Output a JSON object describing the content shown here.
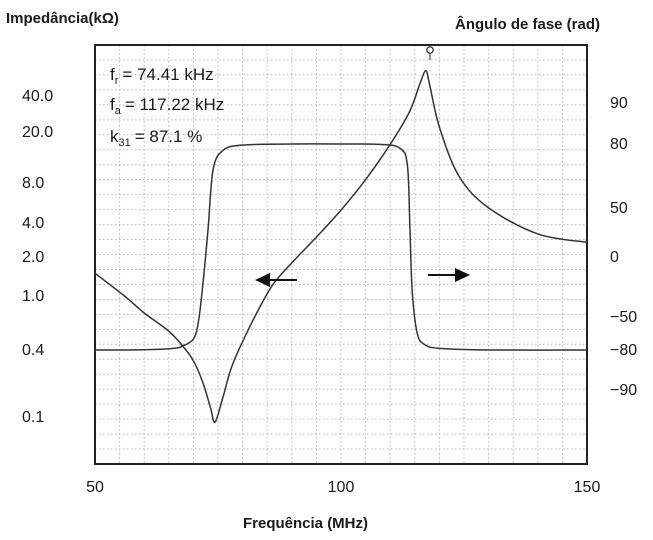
{
  "chart_data": {
    "type": "line",
    "title": "",
    "left_axis_title": "Impedância(kΩ)",
    "right_axis_title": "Ângulo de fase (rad)",
    "x_axis_title": "Frequência (MHz)",
    "xlim": [
      50,
      150
    ],
    "x_ticks": [
      "50",
      "100",
      "150"
    ],
    "left_ticks": [
      "40.0",
      "20.0",
      "8.0",
      "4.0",
      "2.0",
      "1.0",
      "0.4",
      "0.1"
    ],
    "right_ticks": [
      "90",
      "80",
      "50",
      "0",
      "−50",
      "−80",
      "−90"
    ],
    "annotations": {
      "fr": {
        "symbol": "f",
        "sub": "r",
        "value": "=   74.41 kHz"
      },
      "fa": {
        "symbol": "f",
        "sub": "a",
        "value": "= 117.22 kHz"
      },
      "k31": {
        "symbol": "k",
        "sub": "31",
        "value": "=   87.1 %"
      }
    },
    "grid": true,
    "series": [
      {
        "axis": "left",
        "x": [
          50,
          56,
          60,
          65,
          68,
          70,
          72,
          73.5,
          74.41,
          76,
          78,
          82,
          86,
          90,
          95,
          100,
          105,
          110,
          114,
          116,
          117.22,
          118,
          120,
          124,
          130,
          140,
          150
        ],
        "y": [
          1.5,
          1.0,
          0.75,
          0.55,
          0.42,
          0.32,
          0.2,
          0.12,
          0.09,
          0.15,
          0.3,
          0.65,
          1.2,
          1.8,
          3.0,
          5.0,
          8.5,
          16,
          30,
          50,
          65,
          50,
          22,
          9,
          5.2,
          3.2,
          2.7
        ]
      },
      {
        "axis": "right",
        "x": [
          50,
          60,
          66,
          68,
          70,
          71,
          72,
          73,
          74,
          76,
          80,
          90,
          100,
          108,
          112,
          113.5,
          114,
          114.5,
          115.5,
          117,
          120,
          130,
          150
        ],
        "y": [
          -80,
          -79.8,
          -78.5,
          -76,
          -70,
          -55,
          -20,
          30,
          68,
          77,
          79.5,
          80,
          80,
          79.8,
          78,
          70,
          30,
          -30,
          -65,
          -75,
          -78.5,
          -80,
          -80
        ]
      }
    ]
  }
}
